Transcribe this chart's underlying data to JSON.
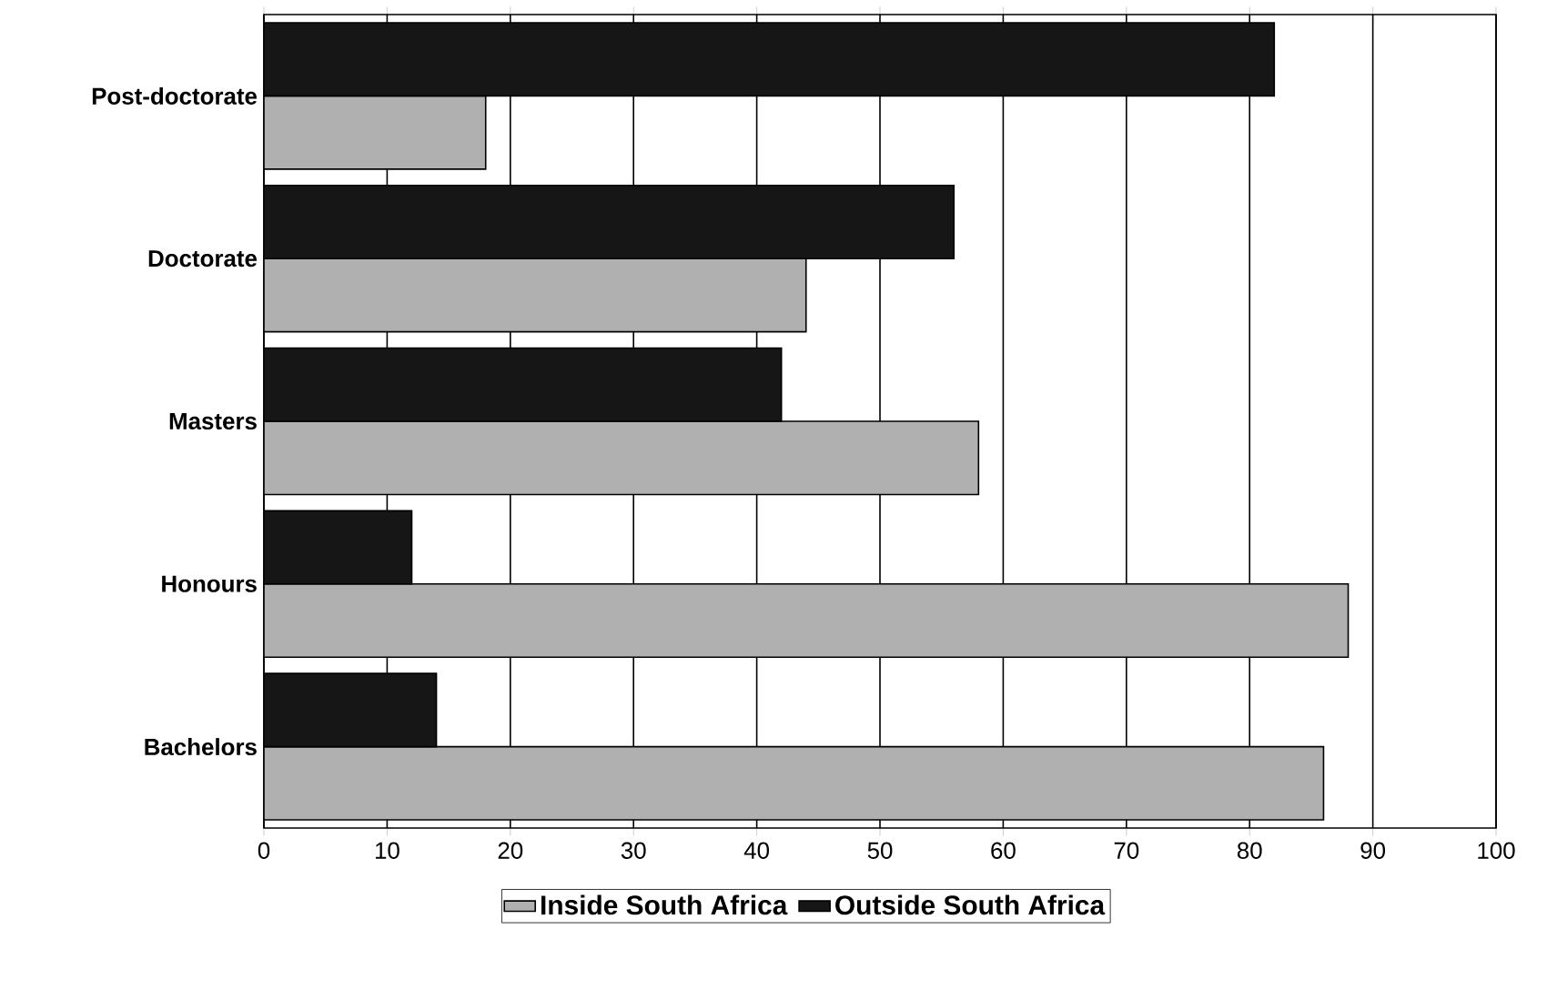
{
  "chart_data": {
    "type": "bar",
    "orientation": "horizontal",
    "categories": [
      "Post-doctorate",
      "Doctorate",
      "Masters",
      "Honours",
      "Bachelors"
    ],
    "series": [
      {
        "name": "Inside South Africa",
        "color": "#b0b0b0",
        "values": [
          18,
          44,
          58,
          88,
          86
        ]
      },
      {
        "name": "Outside South Africa",
        "color": "#161616",
        "values": [
          82,
          56,
          42,
          12,
          14
        ]
      }
    ],
    "xlim": [
      0,
      100
    ],
    "xticks": [
      0,
      10,
      20,
      30,
      40,
      50,
      60,
      70,
      80,
      90,
      100
    ],
    "grid": "x",
    "legend": "bottom"
  }
}
